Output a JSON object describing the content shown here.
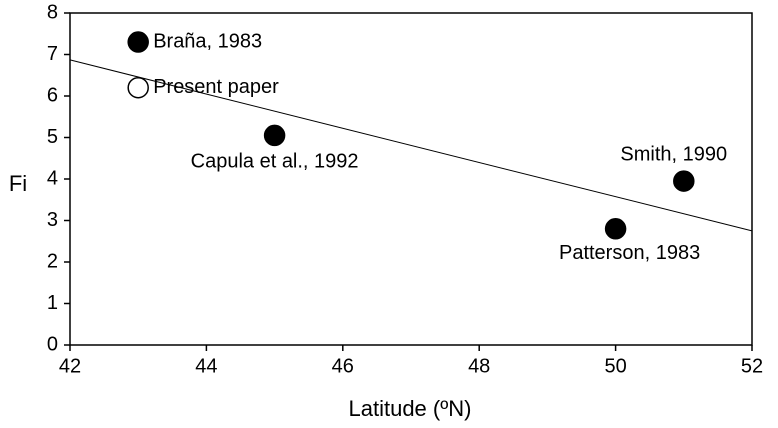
{
  "chart_data": {
    "type": "scatter",
    "x": [
      43,
      43,
      45,
      51,
      50
    ],
    "values": [
      7.3,
      6.2,
      5.05,
      3.95,
      2.8
    ],
    "point_labels": [
      "Braña, 1983",
      "Present paper",
      "Capula et al., 1992",
      "Smith, 1990",
      "Patterson, 1983"
    ],
    "marker_fill": [
      "#000000",
      "#ffffff",
      "#000000",
      "#000000",
      "#000000"
    ],
    "trendline": {
      "x": [
        42,
        52
      ],
      "values": [
        6.87,
        2.75
      ]
    },
    "xlabel": "Latitude (ºN)",
    "ylabel": "Fi",
    "xlim": [
      42,
      52
    ],
    "xticks": [
      42,
      44,
      46,
      48,
      50,
      52
    ],
    "ylim": [
      0,
      8
    ],
    "yticks": [
      0,
      1,
      2,
      3,
      4,
      5,
      6,
      7,
      8
    ]
  }
}
